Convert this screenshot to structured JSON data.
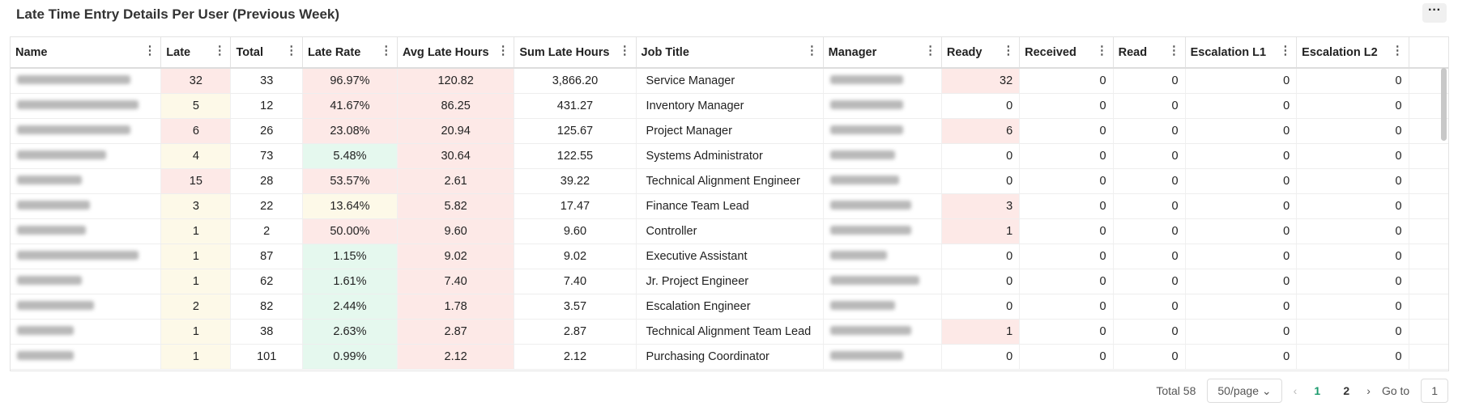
{
  "header": {
    "title": "Late Time Entry Details Per User (Previous Week)"
  },
  "palette": {
    "red": "#fde9e7",
    "yellow": "#fdf9e8",
    "green": "#e5f8ee"
  },
  "table": {
    "columns": [
      "Name",
      "Late",
      "Total",
      "Late Rate",
      "Avg Late Hours",
      "Sum Late Hours",
      "Job Title",
      "Manager",
      "Ready",
      "Received",
      "Read",
      "Escalation L1",
      "Escalation L2"
    ],
    "rows": [
      {
        "cells": [
          null,
          "32",
          "33",
          "96.97%",
          "120.82",
          "3,866.20",
          "Service Manager",
          null,
          "32",
          "0",
          "0",
          "0",
          "0"
        ],
        "tones": [
          null,
          "red",
          null,
          "red",
          "red",
          null,
          null,
          null,
          "red",
          null,
          null,
          null,
          null
        ]
      },
      {
        "cells": [
          null,
          "5",
          "12",
          "41.67%",
          "86.25",
          "431.27",
          "Inventory Manager",
          null,
          "0",
          "0",
          "0",
          "0",
          "0"
        ],
        "tones": [
          null,
          "yellow",
          null,
          "red",
          "red",
          null,
          null,
          null,
          null,
          null,
          null,
          null,
          null
        ]
      },
      {
        "cells": [
          null,
          "6",
          "26",
          "23.08%",
          "20.94",
          "125.67",
          "Project Manager",
          null,
          "6",
          "0",
          "0",
          "0",
          "0"
        ],
        "tones": [
          null,
          "red",
          null,
          "red",
          "red",
          null,
          null,
          null,
          "red",
          null,
          null,
          null,
          null
        ]
      },
      {
        "cells": [
          null,
          "4",
          "73",
          "5.48%",
          "30.64",
          "122.55",
          "Systems Administrator",
          null,
          "0",
          "0",
          "0",
          "0",
          "0"
        ],
        "tones": [
          null,
          "yellow",
          null,
          "green",
          "red",
          null,
          null,
          null,
          null,
          null,
          null,
          null,
          null
        ]
      },
      {
        "cells": [
          null,
          "15",
          "28",
          "53.57%",
          "2.61",
          "39.22",
          "Technical Alignment Engineer",
          null,
          "0",
          "0",
          "0",
          "0",
          "0"
        ],
        "tones": [
          null,
          "red",
          null,
          "red",
          "red",
          null,
          null,
          null,
          null,
          null,
          null,
          null,
          null
        ]
      },
      {
        "cells": [
          null,
          "3",
          "22",
          "13.64%",
          "5.82",
          "17.47",
          "Finance Team Lead",
          null,
          "3",
          "0",
          "0",
          "0",
          "0"
        ],
        "tones": [
          null,
          "yellow",
          null,
          "yellow",
          "red",
          null,
          null,
          null,
          "red",
          null,
          null,
          null,
          null
        ]
      },
      {
        "cells": [
          null,
          "1",
          "2",
          "50.00%",
          "9.60",
          "9.60",
          "Controller",
          null,
          "1",
          "0",
          "0",
          "0",
          "0"
        ],
        "tones": [
          null,
          "yellow",
          null,
          "red",
          "red",
          null,
          null,
          null,
          "red",
          null,
          null,
          null,
          null
        ]
      },
      {
        "cells": [
          null,
          "1",
          "87",
          "1.15%",
          "9.02",
          "9.02",
          "Executive Assistant",
          null,
          "0",
          "0",
          "0",
          "0",
          "0"
        ],
        "tones": [
          null,
          "yellow",
          null,
          "green",
          "red",
          null,
          null,
          null,
          null,
          null,
          null,
          null,
          null
        ]
      },
      {
        "cells": [
          null,
          "1",
          "62",
          "1.61%",
          "7.40",
          "7.40",
          "Jr. Project Engineer",
          null,
          "0",
          "0",
          "0",
          "0",
          "0"
        ],
        "tones": [
          null,
          "yellow",
          null,
          "green",
          "red",
          null,
          null,
          null,
          null,
          null,
          null,
          null,
          null
        ]
      },
      {
        "cells": [
          null,
          "2",
          "82",
          "2.44%",
          "1.78",
          "3.57",
          "Escalation Engineer",
          null,
          "0",
          "0",
          "0",
          "0",
          "0"
        ],
        "tones": [
          null,
          "yellow",
          null,
          "green",
          "red",
          null,
          null,
          null,
          null,
          null,
          null,
          null,
          null
        ]
      },
      {
        "cells": [
          null,
          "1",
          "38",
          "2.63%",
          "2.87",
          "2.87",
          "Technical Alignment Team Lead",
          null,
          "1",
          "0",
          "0",
          "0",
          "0"
        ],
        "tones": [
          null,
          "yellow",
          null,
          "green",
          "red",
          null,
          null,
          null,
          "red",
          null,
          null,
          null,
          null
        ]
      },
      {
        "cells": [
          null,
          "1",
          "101",
          "0.99%",
          "2.12",
          "2.12",
          "Purchasing Coordinator",
          null,
          "0",
          "0",
          "0",
          "0",
          "0"
        ],
        "tones": [
          null,
          "yellow",
          null,
          "green",
          "red",
          null,
          null,
          null,
          null,
          null,
          null,
          null,
          null
        ]
      }
    ]
  },
  "pagination": {
    "total": "Total 58",
    "page_size": "50/page",
    "pages": [
      "1",
      "2"
    ],
    "goto_label": "Go to",
    "goto_value": "1"
  }
}
